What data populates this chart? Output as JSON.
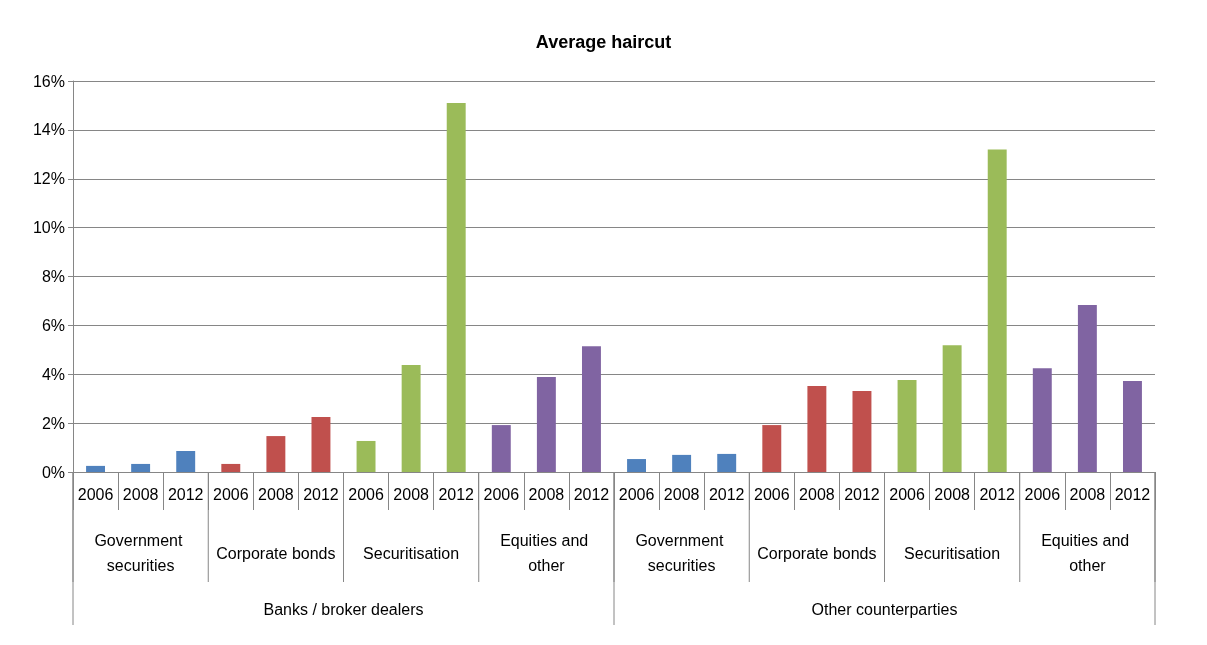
{
  "chart_data": {
    "type": "bar",
    "title": "Average haircut",
    "categories": [
      "2006",
      "2008",
      "2012",
      "2006",
      "2008",
      "2012",
      "2006",
      "2008",
      "2012",
      "2006",
      "2008",
      "2012",
      "2006",
      "2008",
      "2012",
      "2006",
      "2008",
      "2012",
      "2006",
      "2008",
      "2012",
      "2006",
      "2008",
      "2012"
    ],
    "values": [
      0.25,
      0.33,
      0.86,
      0.33,
      1.47,
      2.25,
      1.27,
      4.38,
      15.1,
      1.92,
      3.89,
      5.15,
      0.53,
      0.7,
      0.74,
      1.92,
      3.52,
      3.31,
      3.76,
      5.19,
      13.2,
      4.25,
      6.83,
      3.72
    ],
    "colors": [
      "#4f81bd",
      "#4f81bd",
      "#4f81bd",
      "#c0504d",
      "#c0504d",
      "#c0504d",
      "#9bbb59",
      "#9bbb59",
      "#9bbb59",
      "#8064a2",
      "#8064a2",
      "#8064a2",
      "#4f81bd",
      "#4f81bd",
      "#4f81bd",
      "#c0504d",
      "#c0504d",
      "#c0504d",
      "#9bbb59",
      "#9bbb59",
      "#9bbb59",
      "#8064a2",
      "#8064a2",
      "#8064a2"
    ],
    "ylim": [
      0,
      16
    ],
    "yticks": [
      {
        "value": 0,
        "label": "0%"
      },
      {
        "value": 2,
        "label": "2%"
      },
      {
        "value": 4,
        "label": "4%"
      },
      {
        "value": 6,
        "label": "6%"
      },
      {
        "value": 8,
        "label": "8%"
      },
      {
        "value": 10,
        "label": "10%"
      },
      {
        "value": 12,
        "label": "12%"
      },
      {
        "value": 14,
        "label": "14%"
      },
      {
        "value": 16,
        "label": "16%"
      }
    ],
    "grid": "y",
    "annotations": [
      "Government securities",
      "Corporate bonds",
      "Securitisation",
      "Equities and other",
      "Government securities",
      "Corporate bonds",
      "Securitisation",
      "Equities and other",
      "Banks / broker dealers",
      "Other counterparties"
    ]
  }
}
